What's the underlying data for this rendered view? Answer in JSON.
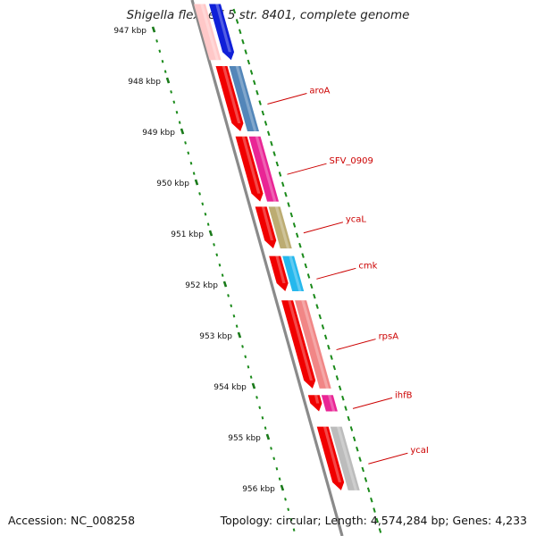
{
  "title": "Shigella flexneri 5 str. 8401, complete genome",
  "footer": {
    "accession": "Accession: NC_008258",
    "stats": "Topology: circular; Length: 4,574,284 bp; Genes: 4,233"
  },
  "ruler": {
    "ticks": [
      {
        "kbp": 947,
        "label": "947 kbp"
      },
      {
        "kbp": 948,
        "label": "948 kbp"
      },
      {
        "kbp": 949,
        "label": "949 kbp"
      },
      {
        "kbp": 950,
        "label": "950 kbp"
      },
      {
        "kbp": 951,
        "label": "951 kbp"
      },
      {
        "kbp": 952,
        "label": "952 kbp"
      },
      {
        "kbp": 953,
        "label": "953 kbp"
      },
      {
        "kbp": 954,
        "label": "954 kbp"
      },
      {
        "kbp": 955,
        "label": "955 kbp"
      },
      {
        "kbp": 956,
        "label": "956 kbp"
      }
    ]
  },
  "genes": [
    {
      "name": "aroA",
      "start_kbp": 947.72,
      "end_kbp": 949.0,
      "color": "#4a7fb5"
    },
    {
      "name": "SFV_0909",
      "start_kbp": 949.1,
      "end_kbp": 950.38,
      "color": "#e8198f"
    },
    {
      "name": "ycaL",
      "start_kbp": 950.48,
      "end_kbp": 951.3,
      "color": "#b8a86a"
    },
    {
      "name": "cmk",
      "start_kbp": 951.45,
      "end_kbp": 952.14,
      "color": "#1ab4ec"
    },
    {
      "name": "rpsA",
      "start_kbp": 952.32,
      "end_kbp": 954.05,
      "color": "#f07f7f"
    },
    {
      "name": "ihfB",
      "start_kbp": 954.18,
      "end_kbp": 954.5,
      "color": "#e8198f"
    },
    {
      "name": "ycaI",
      "start_kbp": 954.8,
      "end_kbp": 956.05,
      "color": "#b8b8b8"
    }
  ],
  "edge_genes": [
    {
      "start_kbp": 946.5,
      "end_kbp": 947.6,
      "color": "#1020d8"
    }
  ],
  "colors": {
    "cds": "#f00000",
    "backbone": "#8a8a8a",
    "ruler_major": "#1a7a1a",
    "ruler_minor": "#1a8a1a",
    "gc_ticks": "#1a8a1a",
    "label": "#cc0000"
  }
}
